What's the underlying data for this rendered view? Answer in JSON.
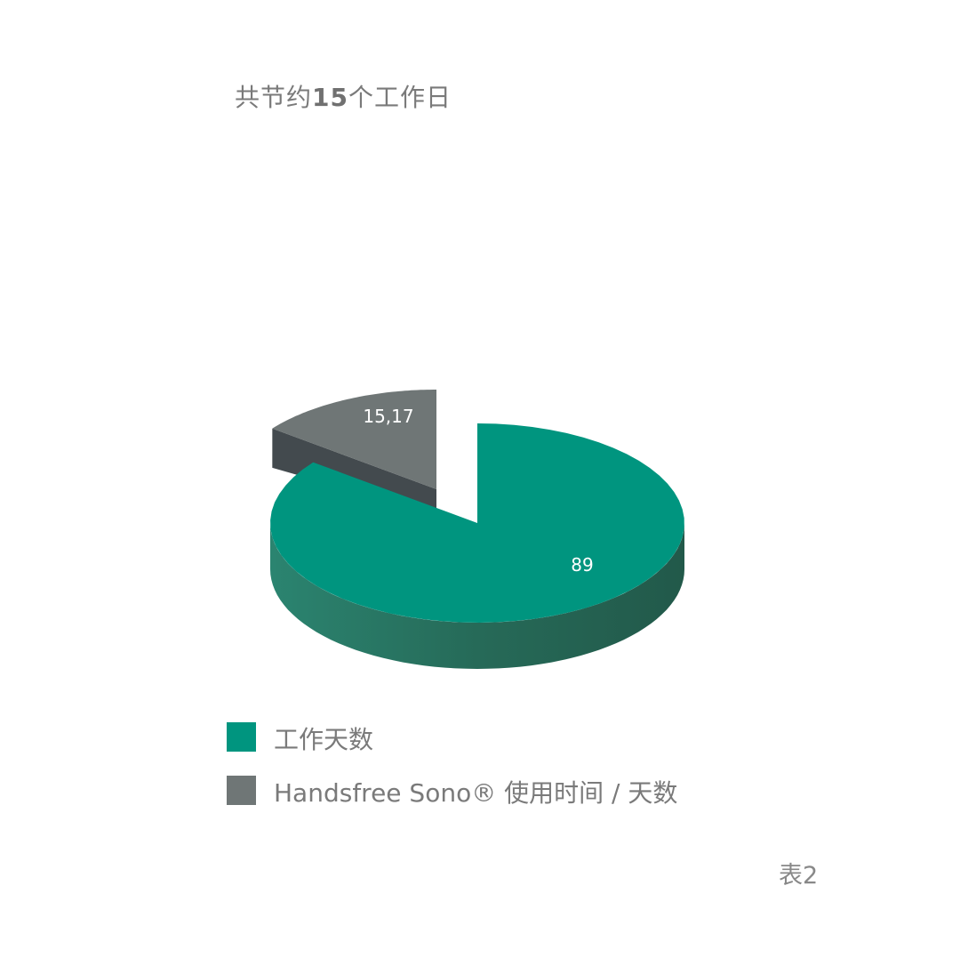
{
  "title_parts": [
    "共节约",
    "15",
    "个工作日"
  ],
  "chart_data": {
    "type": "pie",
    "style": "3d-exploded",
    "title": "共节约15个工作日",
    "slices": [
      {
        "label": "工作天数",
        "value": 89,
        "value_label": "89",
        "color": "#00957f"
      },
      {
        "label": "Handsfree Sono® 使用时间 / 天数",
        "value": 15.17,
        "value_label": "15,17",
        "color": "#6f7676",
        "exploded": true
      }
    ],
    "legend_position": "bottom-left"
  },
  "footer_label": "表2"
}
